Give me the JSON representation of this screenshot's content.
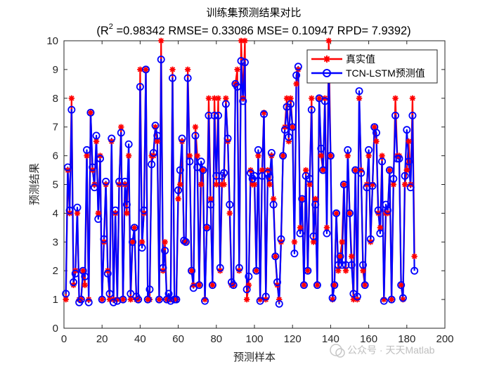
{
  "chart_data": {
    "type": "line",
    "title": "训练集预测结果对比",
    "subtitle": {
      "prefix": "(R",
      "sup": "2",
      "rest": " =0.98342 RMSE= 0.33086 MSE= 0.10947 RPD= 7.9392)"
    },
    "xlabel": "预测样本",
    "ylabel": "预测结果",
    "xlim": [
      0,
      200
    ],
    "ylim": [
      0,
      10
    ],
    "xticks": [
      0,
      20,
      40,
      60,
      80,
      100,
      120,
      140,
      160,
      180,
      200
    ],
    "yticks": [
      0,
      1,
      2,
      3,
      4,
      5,
      6,
      7,
      8,
      9,
      10
    ],
    "legend_position": "top-right",
    "series": [
      {
        "name": "真实值",
        "color": "#ff0000",
        "marker": "asterisk",
        "values": [
          1,
          5.5,
          4,
          8,
          1.5,
          2,
          4,
          1,
          1,
          2,
          1.5,
          6,
          1,
          7.5,
          5.5,
          5,
          6.5,
          4,
          6,
          1,
          3,
          5,
          2,
          1,
          6.5,
          1,
          4,
          1,
          5,
          7,
          1,
          5,
          4,
          6,
          1,
          3,
          3.5,
          1,
          1,
          9,
          3,
          4,
          9,
          1,
          1,
          6,
          6,
          7,
          6.5,
          1,
          10,
          2,
          3,
          1,
          1,
          1,
          9,
          1,
          1,
          4.5,
          5,
          6.5,
          3,
          3,
          9,
          6,
          2,
          1.5,
          7,
          6,
          1.5,
          5,
          5.5,
          1,
          3.5,
          8,
          4.5,
          1.5,
          8,
          5,
          8,
          2,
          5,
          5,
          8,
          6.5,
          4,
          1.5,
          1.5,
          8.5,
          9,
          2,
          10,
          8,
          10,
          1,
          1.5,
          5.5,
          5,
          5,
          2,
          6,
          1,
          5.5,
          7.5,
          1,
          5.5,
          5,
          6,
          4.5,
          2.5,
          1.5,
          1,
          3,
          6,
          7,
          8,
          6.5,
          8,
          7,
          3,
          8.5,
          9,
          3.5,
          4.5,
          1.5,
          5.5,
          2,
          5,
          8,
          3,
          4.5,
          1.5,
          8,
          6,
          5.5,
          8,
          3.5,
          10,
          6,
          1,
          1.5,
          4,
          2,
          2.5,
          3,
          5,
          2,
          6,
          4,
          2.5,
          1,
          5.5,
          1,
          8,
          5.5,
          2,
          1.5,
          5,
          6,
          3,
          5,
          7,
          6.5,
          4,
          3.5,
          6,
          1,
          4,
          4,
          5.5,
          1,
          5,
          8,
          6,
          6,
          1.5,
          1,
          5,
          5.5,
          6.5,
          5,
          8,
          2.5
        ],
        "name_key": "真实值"
      },
      {
        "name": "TCN-LSTM预测值",
        "color": "#0000ff",
        "marker": "circle",
        "values": [
          1.2,
          5.6,
          4.1,
          7.6,
          1.6,
          1.9,
          4.2,
          0.9,
          1,
          2,
          1.8,
          6.2,
          0.9,
          7.5,
          5.6,
          4.9,
          6.7,
          3.8,
          5.9,
          1,
          3.1,
          5.1,
          1.9,
          1.2,
          6.6,
          0.9,
          4.1,
          0.95,
          5.1,
          6.8,
          1,
          5.1,
          4.3,
          6.4,
          1.2,
          3,
          3.5,
          1.1,
          1,
          8.4,
          2.8,
          4.1,
          9,
          1,
          1.35,
          5.7,
          6.1,
          7.05,
          6.7,
          1,
          9.35,
          2.1,
          2.7,
          1,
          1.2,
          0.95,
          8.7,
          1,
          1,
          4.8,
          5.5,
          6.6,
          3.05,
          3,
          8.7,
          5.8,
          2,
          1.4,
          6.7,
          5.6,
          1.5,
          5.8,
          5.5,
          0.95,
          3.5,
          7.4,
          4.3,
          1.5,
          7.4,
          5.3,
          7.4,
          2.1,
          5.3,
          5.4,
          7.8,
          6.6,
          4.3,
          1.6,
          1.5,
          8.5,
          8.4,
          2.1,
          9.3,
          7.9,
          9.25,
          1.35,
          1.8,
          5.4,
          5.2,
          5.3,
          2,
          6.2,
          0.95,
          5.3,
          7.45,
          1.1,
          5.4,
          5.25,
          6.1,
          4.3,
          2.5,
          1.6,
          0.85,
          3.1,
          6,
          6.9,
          7.7,
          6.65,
          7.8,
          7,
          2.6,
          8.8,
          9.1,
          3.3,
          4.5,
          1.5,
          5.3,
          2,
          5.2,
          7.6,
          3.2,
          4.3,
          1.5,
          8,
          6.25,
          5.5,
          7.9,
          3.3,
          9.15,
          6,
          1.05,
          1.5,
          4,
          2.2,
          2.5,
          2.2,
          5,
          2.2,
          6.2,
          4,
          2.2,
          1.2,
          5.5,
          1.1,
          8.25,
          5.4,
          2.2,
          1.5,
          4.9,
          6.2,
          3.1,
          4.95,
          7,
          6.8,
          4.1,
          3.3,
          5.8,
          0.95,
          4.3,
          4.1,
          5.5,
          1,
          5.2,
          7.4,
          5.9,
          5.9,
          1.5,
          1.05,
          5.3,
          6.9,
          5.8,
          4.9,
          7.4,
          2
        ]
      }
    ]
  },
  "legend": {
    "series_1_label": "真实值",
    "series_2_label": "TCN-LSTM预测值"
  },
  "watermark": {
    "text": "公众号 · 天天Matlab"
  },
  "colors": {
    "actual": "#ff0000",
    "predicted": "#0000ff",
    "axes": "#262626"
  }
}
